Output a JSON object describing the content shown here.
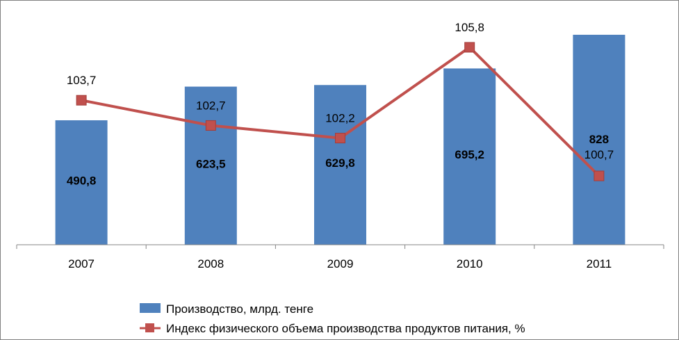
{
  "chart_data": {
    "type": "bar",
    "categories": [
      "2007",
      "2008",
      "2009",
      "2010",
      "2011"
    ],
    "series": [
      {
        "name": "Производство, млрд. тенге",
        "type": "bar",
        "axis": "primary",
        "values": [
          490.8,
          623.5,
          629.8,
          695.2,
          828
        ],
        "labels": [
          "490,8",
          "623,5",
          "629,8",
          "695,2",
          "828"
        ],
        "color": "#4f81bd"
      },
      {
        "name": "Индекс физического объема производства продуктов питания, %",
        "type": "line",
        "axis": "secondary",
        "values": [
          103.7,
          102.7,
          102.2,
          105.8,
          100.7
        ],
        "labels": [
          "103,7",
          "102,7",
          "102,2",
          "105,8",
          "100,7"
        ],
        "color": "#c0504d"
      }
    ],
    "y_primary_range": [
      0,
      850
    ],
    "y_secondary_range": [
      95.2,
      107.3
    ],
    "grid": false,
    "legend_position": "bottom-left"
  }
}
